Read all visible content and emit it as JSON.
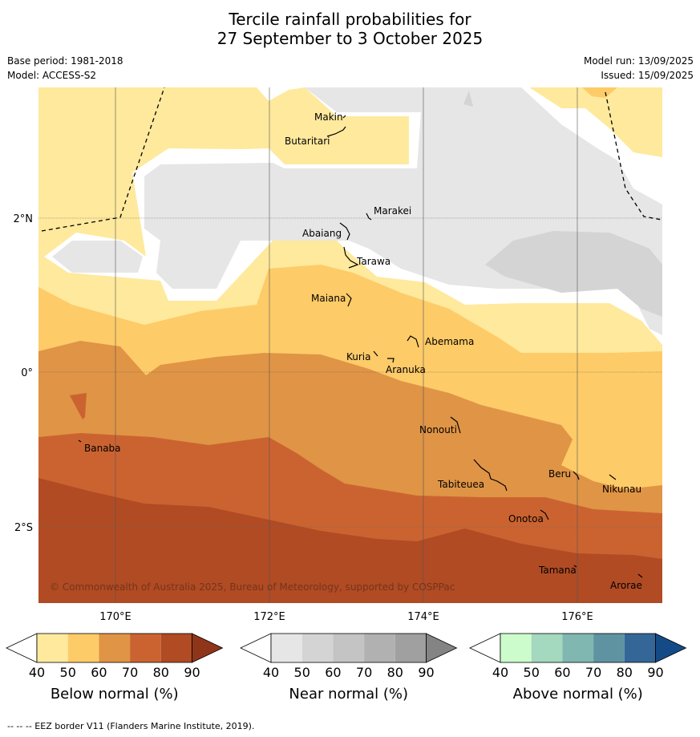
{
  "title": {
    "line1": "Tercile rainfall probabilities for",
    "line2": "27 September to 3 October 2025"
  },
  "meta": {
    "base_period": "Base period: 1981-2018",
    "model": "Model: ACCESS-S2",
    "model_run": "Model run: 13/09/2025",
    "issued": "Issued: 15/09/2025"
  },
  "map": {
    "lat_labels": [
      "2°N",
      "0°",
      "2°S"
    ],
    "lon_labels": [
      "170°E",
      "172°E",
      "174°E",
      "176°E"
    ],
    "islands": [
      {
        "name": "Makin"
      },
      {
        "name": "Butaritari"
      },
      {
        "name": "Marakei"
      },
      {
        "name": "Abaiang"
      },
      {
        "name": "Tarawa"
      },
      {
        "name": "Maiana"
      },
      {
        "name": "Abemama"
      },
      {
        "name": "Kuria"
      },
      {
        "name": "Aranuka"
      },
      {
        "name": "Nonouti"
      },
      {
        "name": "Banaba"
      },
      {
        "name": "Beru"
      },
      {
        "name": "Tabiteuea"
      },
      {
        "name": "Nikunau"
      },
      {
        "name": "Onotoa"
      },
      {
        "name": "Tamana"
      },
      {
        "name": "Arorae"
      }
    ],
    "copyright": "© Commonwealth of Australia 2025, Bureau of Meteorology, supported by COSPPac"
  },
  "colorbars": [
    {
      "label": "Below normal (%)",
      "ticks": [
        "40",
        "50",
        "60",
        "70",
        "80",
        "90"
      ],
      "colors": [
        "#ffffff",
        "#fee99d",
        "#fdcb68",
        "#e09445",
        "#cb6331",
        "#b04b24",
        "#8f3519"
      ]
    },
    {
      "label": "Near normal (%)",
      "ticks": [
        "40",
        "50",
        "60",
        "70",
        "80",
        "90"
      ],
      "colors": [
        "#ffffff",
        "#e6e6e6",
        "#d4d4d4",
        "#c4c4c4",
        "#b1b1b1",
        "#a0a0a0",
        "#848484"
      ]
    },
    {
      "label": "Above normal (%)",
      "ticks": [
        "40",
        "50",
        "60",
        "70",
        "80",
        "90"
      ],
      "colors": [
        "#ffffff",
        "#ccfccc",
        "#a4d8bf",
        "#80b7b1",
        "#5f93a2",
        "#346698",
        "#144b86"
      ]
    }
  ],
  "footer": "--  --  -- EEZ border V11 (Flanders Marine Institute, 2019)."
}
